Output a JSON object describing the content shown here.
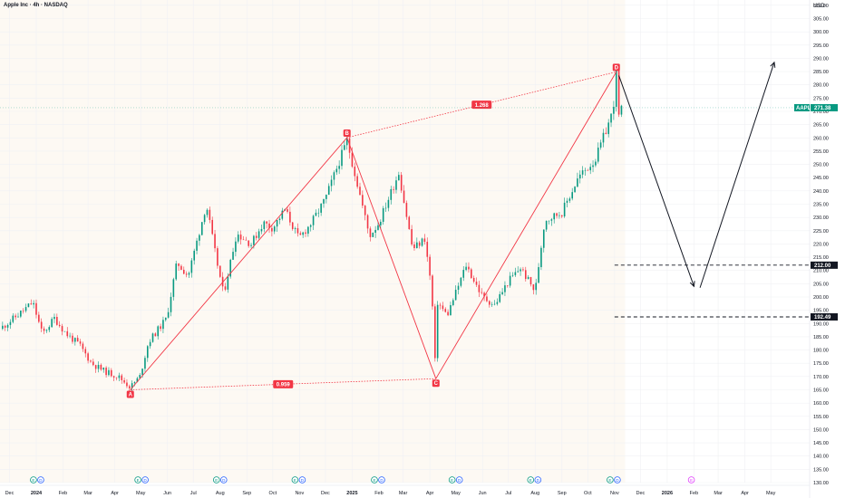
{
  "header": {
    "title": "Apple Inc · 4h · NASDAQ",
    "currency": "USD"
  },
  "colors": {
    "pattern": "#f23645",
    "candle_up": "#089981",
    "candle_down": "#f23645",
    "price_tag": "#089981",
    "level_tag": "#131722",
    "history_bg": "#fdf9f3",
    "arrow": "#131722"
  },
  "chart_data": {
    "type": "candlestick",
    "title": "Apple Inc · 4h · NASDAQ",
    "y_axis": {
      "unit": "USD",
      "ylim": [
        130,
        312
      ],
      "ticks": [
        130,
        135,
        140,
        145,
        150,
        155,
        160,
        165,
        170,
        175,
        180,
        185,
        190,
        195,
        200,
        205,
        210,
        215,
        220,
        225,
        230,
        235,
        240,
        245,
        250,
        255,
        260,
        265,
        270,
        275,
        280,
        285,
        290,
        295,
        300,
        305,
        310
      ],
      "tick_labels": [
        "130.00",
        "135.00",
        "140.00",
        "145.00",
        "150.00",
        "155.00",
        "160.00",
        "165.00",
        "170.00",
        "175.00",
        "180.00",
        "185.00",
        "190.00",
        "195.00",
        "200.00",
        "205.00",
        "210.00",
        "215.00",
        "220.00",
        "225.00",
        "230.00",
        "235.00",
        "240.00",
        "245.00",
        "250.00",
        "255.00",
        "260.00",
        "265.00",
        "270.00",
        "275.00",
        "280.00",
        "285.00",
        "290.00",
        "295.00",
        "300.00",
        "305.00",
        "310.00"
      ]
    },
    "x_axis": {
      "range": [
        "2023-11-20",
        "2026-06-15"
      ],
      "ticks": [
        {
          "date": "2023-12-01",
          "label": "Dec",
          "bold": false
        },
        {
          "date": "2024-01-01",
          "label": "2024",
          "bold": true
        },
        {
          "date": "2024-02-01",
          "label": "Feb",
          "bold": false
        },
        {
          "date": "2024-03-01",
          "label": "Mar",
          "bold": false
        },
        {
          "date": "2024-04-01",
          "label": "Apr",
          "bold": false
        },
        {
          "date": "2024-05-01",
          "label": "May",
          "bold": false
        },
        {
          "date": "2024-06-01",
          "label": "Jun",
          "bold": false
        },
        {
          "date": "2024-07-01",
          "label": "Jul",
          "bold": false
        },
        {
          "date": "2024-08-01",
          "label": "Aug",
          "bold": false
        },
        {
          "date": "2024-09-01",
          "label": "Sep",
          "bold": false
        },
        {
          "date": "2024-10-01",
          "label": "Oct",
          "bold": false
        },
        {
          "date": "2024-11-01",
          "label": "Nov",
          "bold": false
        },
        {
          "date": "2024-12-01",
          "label": "Dec",
          "bold": false
        },
        {
          "date": "2025-01-01",
          "label": "2025",
          "bold": true
        },
        {
          "date": "2025-02-01",
          "label": "Feb",
          "bold": false
        },
        {
          "date": "2025-03-01",
          "label": "Mar",
          "bold": false
        },
        {
          "date": "2025-04-01",
          "label": "Apr",
          "bold": false
        },
        {
          "date": "2025-05-01",
          "label": "May",
          "bold": false
        },
        {
          "date": "2025-06-01",
          "label": "Jun",
          "bold": false
        },
        {
          "date": "2025-07-01",
          "label": "Jul",
          "bold": false
        },
        {
          "date": "2025-08-01",
          "label": "Aug",
          "bold": false
        },
        {
          "date": "2025-09-01",
          "label": "Sep",
          "bold": false
        },
        {
          "date": "2025-10-01",
          "label": "Oct",
          "bold": false
        },
        {
          "date": "2025-11-01",
          "label": "Nov",
          "bold": false
        },
        {
          "date": "2025-12-01",
          "label": "Dec",
          "bold": false
        },
        {
          "date": "2026-01-01",
          "label": "2026",
          "bold": true
        },
        {
          "date": "2026-02-01",
          "label": "Feb",
          "bold": false
        },
        {
          "date": "2026-03-01",
          "label": "Mar",
          "bold": false
        },
        {
          "date": "2026-04-01",
          "label": "Apr",
          "bold": false
        },
        {
          "date": "2026-05-01",
          "label": "May",
          "bold": false
        }
      ]
    },
    "last_bar_date": "2025-11-10",
    "price_path": [
      [
        "2023-11-20",
        188
      ],
      [
        "2023-12-10",
        193
      ],
      [
        "2023-12-28",
        198
      ],
      [
        "2024-01-08",
        186
      ],
      [
        "2024-01-22",
        192
      ],
      [
        "2024-02-05",
        186
      ],
      [
        "2024-02-20",
        182
      ],
      [
        "2024-03-05",
        175
      ],
      [
        "2024-03-20",
        172
      ],
      [
        "2024-04-05",
        170
      ],
      [
        "2024-04-19",
        166
      ],
      [
        "2024-04-30",
        170
      ],
      [
        "2024-05-10",
        183
      ],
      [
        "2024-05-31",
        192
      ],
      [
        "2024-06-12",
        213
      ],
      [
        "2024-06-25",
        208
      ],
      [
        "2024-07-16",
        235
      ],
      [
        "2024-07-26",
        217
      ],
      [
        "2024-08-05",
        201
      ],
      [
        "2024-08-20",
        224
      ],
      [
        "2024-09-06",
        220
      ],
      [
        "2024-09-20",
        228
      ],
      [
        "2024-10-01",
        226
      ],
      [
        "2024-10-15",
        233
      ],
      [
        "2024-10-31",
        222
      ],
      [
        "2024-11-15",
        228
      ],
      [
        "2024-12-01",
        237
      ],
      [
        "2024-12-26",
        259
      ],
      [
        "2025-01-06",
        244
      ],
      [
        "2025-01-21",
        223
      ],
      [
        "2025-02-01",
        228
      ],
      [
        "2025-02-24",
        247
      ],
      [
        "2025-03-12",
        218
      ],
      [
        "2025-03-26",
        222
      ],
      [
        "2025-04-03",
        203
      ],
      [
        "2025-04-08",
        169
      ],
      [
        "2025-04-10",
        198
      ],
      [
        "2025-04-21",
        193
      ],
      [
        "2025-05-13",
        212
      ],
      [
        "2025-06-01",
        200
      ],
      [
        "2025-06-15",
        197
      ],
      [
        "2025-07-01",
        206
      ],
      [
        "2025-07-15",
        211
      ],
      [
        "2025-08-01",
        202
      ],
      [
        "2025-08-12",
        229
      ],
      [
        "2025-09-01",
        232
      ],
      [
        "2025-09-20",
        245
      ],
      [
        "2025-10-10",
        252
      ],
      [
        "2025-10-30",
        270
      ],
      [
        "2025-11-03",
        284
      ],
      [
        "2025-11-06",
        268
      ],
      [
        "2025-11-10",
        271.38
      ]
    ],
    "pattern": {
      "points": [
        {
          "label": "A",
          "date": "2024-04-19",
          "price": 165.0
        },
        {
          "label": "B",
          "date": "2024-12-26",
          "price": 260.1
        },
        {
          "label": "C",
          "date": "2025-04-08",
          "price": 169.2
        },
        {
          "label": "D",
          "date": "2025-11-03",
          "price": 284.9
        }
      ],
      "ratios": [
        {
          "label": "0.959",
          "from": "A",
          "to": "C"
        },
        {
          "label": "1.268",
          "from": "B",
          "to": "D"
        }
      ]
    },
    "current_price": {
      "symbol": "AAPL",
      "value": 271.38,
      "label": "271.38"
    },
    "levels": [
      {
        "value": 212.0,
        "label": "212.00"
      },
      {
        "value": 192.49,
        "label": "192.49"
      }
    ],
    "projection": [
      {
        "from": [
          "2025-11-06",
          283.5
        ],
        "to": [
          "2026-02-01",
          204.0
        ]
      },
      {
        "from": [
          "2026-02-08",
          203.5
        ],
        "to": [
          "2026-05-05",
          288.5
        ]
      }
    ],
    "event_markers": [
      {
        "date": "2024-01-02",
        "labels": [
          "E",
          "D"
        ]
      },
      {
        "date": "2024-05-02",
        "labels": [
          "E",
          "D"
        ]
      },
      {
        "date": "2024-08-01",
        "labels": [
          "E",
          "D"
        ]
      },
      {
        "date": "2024-10-31",
        "labels": [
          "E",
          "D"
        ]
      },
      {
        "date": "2025-01-31",
        "labels": [
          "E",
          "D"
        ]
      },
      {
        "date": "2025-05-01",
        "labels": [
          "E",
          "D"
        ]
      },
      {
        "date": "2025-07-31",
        "labels": [
          "E",
          "D"
        ]
      },
      {
        "date": "2025-10-31",
        "labels": [
          "E",
          "D"
        ]
      },
      {
        "date": "2026-01-29",
        "labels": [
          "E"
        ]
      }
    ]
  }
}
